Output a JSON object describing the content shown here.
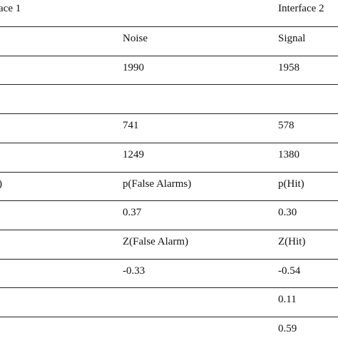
{
  "table": {
    "header": [
      "ace 1",
      null,
      "Interface 2"
    ],
    "rows": [
      [
        null,
        "Noise",
        "Signal"
      ],
      [
        null,
        "1990",
        "1958"
      ],
      [
        null,
        null,
        null
      ],
      [
        null,
        "741",
        "578"
      ],
      [
        null,
        "1249",
        "1380"
      ],
      [
        ")",
        "p(False Alarms)",
        "p(Hit)"
      ],
      [
        null,
        "0.37",
        "0.30"
      ],
      [
        null,
        "Z(False Alarm)",
        "Z(Hit)"
      ],
      [
        null,
        "-0.33",
        "-0.54"
      ],
      [
        null,
        null,
        "0.11"
      ],
      [
        null,
        null,
        "0.59"
      ]
    ]
  }
}
